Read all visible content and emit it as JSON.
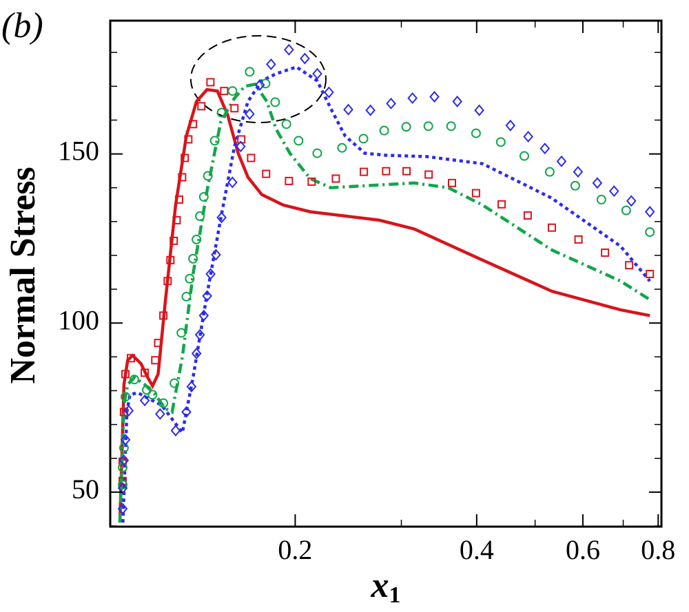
{
  "chart_data": {
    "type": "line",
    "title": "(b)",
    "ylabel": "Normal Stress",
    "xlabel": {
      "text": "x",
      "sub": "1"
    },
    "xscale": "log",
    "xlim": [
      0.0987,
      0.81
    ],
    "ylim": [
      39.8,
      189.4
    ],
    "xticks": [
      0.2,
      0.4,
      0.6,
      0.8
    ],
    "xminorticks": [
      0.3,
      0.5,
      0.7
    ],
    "yticks": [
      50,
      100,
      150
    ],
    "yminorticks": [
      40,
      60,
      70,
      80,
      90,
      110,
      120,
      130,
      140,
      160,
      170,
      180
    ],
    "series": [
      {
        "color": "#d9141b",
        "style": "solid",
        "x": [
          0.1024,
          0.104,
          0.1055,
          0.1075,
          0.111,
          0.1139,
          0.116,
          0.1185,
          0.1218,
          0.1267,
          0.132,
          0.1372,
          0.1428,
          0.1486,
          0.1546,
          0.1609,
          0.167,
          0.176,
          0.191,
          0.2118,
          0.276,
          0.315,
          0.409,
          0.533,
          0.693,
          0.775
        ],
        "values": [
          41.0,
          81.8,
          89.0,
          90.4,
          88.0,
          83.9,
          81.4,
          84.9,
          106.3,
          134.9,
          155.3,
          165.5,
          169.0,
          168.6,
          161.4,
          150.2,
          143.1,
          138.0,
          134.9,
          132.9,
          130.4,
          127.8,
          118.6,
          109.4,
          103.9,
          102.2
        ]
      },
      {
        "color": "#12a64a",
        "style": "dashdot",
        "x": [
          0.1024,
          0.104,
          0.1055,
          0.1082,
          0.1126,
          0.1172,
          0.1218,
          0.125,
          0.13,
          0.1354,
          0.1428,
          0.1505,
          0.1586,
          0.165,
          0.1716,
          0.1795,
          0.186,
          0.196,
          0.2118,
          0.229,
          0.261,
          0.315,
          0.359,
          0.409,
          0.533,
          0.693,
          0.775
        ],
        "values": [
          41.0,
          75.7,
          81.8,
          83.9,
          81.8,
          78.8,
          74.7,
          73.7,
          90.0,
          114.5,
          139.0,
          159.4,
          166.5,
          170.0,
          170.6,
          165.5,
          157.3,
          150.2,
          142.7,
          140.0,
          140.6,
          141.4,
          140.0,
          134.9,
          121.6,
          112.4,
          106.9
        ]
      },
      {
        "color": "#2b2bef",
        "style": "dotted",
        "x": [
          0.1036,
          0.1052,
          0.1064,
          0.1096,
          0.1139,
          0.1201,
          0.125,
          0.13,
          0.1354,
          0.1428,
          0.1505,
          0.1586,
          0.167,
          0.176,
          0.186,
          0.201,
          0.2176,
          0.229,
          0.242,
          0.261,
          0.283,
          0.331,
          0.409,
          0.533,
          0.693,
          0.775
        ],
        "values": [
          41.0,
          73.7,
          78.8,
          79.4,
          77.8,
          75.7,
          71.6,
          67.6,
          83.9,
          108.4,
          130.8,
          152.2,
          165.5,
          171.6,
          173.7,
          175.7,
          171.6,
          163.5,
          155.3,
          150.2,
          149.6,
          149.2,
          147.1,
          136.9,
          122.7,
          112.4
        ]
      },
      {
        "color": "#d9141b",
        "marker": "square",
        "x": [
          0.1035,
          0.1035,
          0.104,
          0.1046,
          0.1068,
          0.1126,
          0.1172,
          0.1185,
          0.1209,
          0.1229,
          0.1242,
          0.1258,
          0.1272,
          0.1284,
          0.1299,
          0.1312,
          0.133,
          0.1354,
          0.1398,
          0.1447,
          0.1525,
          0.1586,
          0.1628,
          0.169,
          0.179,
          0.1953,
          0.213,
          0.2336,
          0.26,
          0.283,
          0.306,
          0.333,
          0.364,
          0.399,
          0.44,
          0.486,
          0.533,
          0.59,
          0.653,
          0.716,
          0.775
        ],
        "values": [
          53.3,
          59.0,
          73.7,
          84.9,
          89.6,
          85.3,
          89.0,
          94.1,
          102.2,
          112.4,
          118.6,
          124.3,
          130.4,
          136.5,
          143.1,
          148.8,
          154.3,
          158.8,
          164.1,
          171.2,
          168.6,
          163.5,
          154.3,
          148.8,
          144.1,
          142.0,
          141.8,
          142.7,
          144.7,
          144.9,
          144.9,
          143.9,
          141.4,
          138.4,
          135.1,
          131.8,
          128.2,
          124.7,
          120.8,
          117.1,
          114.5
        ]
      },
      {
        "color": "#12a64a",
        "marker": "circle",
        "x": [
          0.1035,
          0.1035,
          0.104,
          0.1046,
          0.1082,
          0.1135,
          0.116,
          0.1209,
          0.1261,
          0.1295,
          0.132,
          0.1337,
          0.1354,
          0.1372,
          0.139,
          0.1411,
          0.1433,
          0.1471,
          0.151,
          0.1574,
          0.1681,
          0.1786,
          0.1853,
          0.1934,
          0.2026,
          0.2176,
          0.2392,
          0.2596,
          0.281,
          0.3056,
          0.3326,
          0.3628,
          0.399,
          0.4386,
          0.4798,
          0.5288,
          0.5828,
          0.644,
          0.708,
          0.775
        ],
        "values": [
          52.2,
          57.3,
          63.1,
          78.2,
          83.3,
          80.2,
          78.8,
          76.3,
          82.2,
          97.1,
          107.8,
          113.1,
          119.0,
          124.7,
          131.6,
          137.3,
          143.5,
          153.9,
          162.2,
          168.6,
          174.3,
          170.8,
          165.3,
          158.8,
          153.9,
          150.2,
          151.8,
          154.5,
          156.9,
          158.0,
          158.2,
          158.2,
          156.1,
          153.5,
          149.4,
          144.7,
          140.6,
          136.5,
          133.3,
          126.9
        ]
      },
      {
        "color": "#2b2bef",
        "marker": "diamond",
        "x": [
          0.1035,
          0.1035,
          0.104,
          0.1046,
          0.1059,
          0.1126,
          0.1194,
          0.1267,
          0.132,
          0.1346,
          0.1372,
          0.139,
          0.1411,
          0.1429,
          0.1448,
          0.1478,
          0.151,
          0.1574,
          0.1624,
          0.1681,
          0.1748,
          0.1824,
          0.1953,
          0.2075,
          0.2176,
          0.2275,
          0.245,
          0.2666,
          0.2884,
          0.313,
          0.3404,
          0.3714,
          0.404,
          0.455,
          0.487,
          0.519,
          0.553,
          0.589,
          0.634,
          0.676,
          0.722,
          0.775
        ],
        "values": [
          45.1,
          51.2,
          59.4,
          65.5,
          74.1,
          77.1,
          73.1,
          68.2,
          73.7,
          81.2,
          91.0,
          96.5,
          102.2,
          108.0,
          114.5,
          120.2,
          131.2,
          141.6,
          152.2,
          161.8,
          170.4,
          176.5,
          180.8,
          178.2,
          173.7,
          168.2,
          163.1,
          162.9,
          164.9,
          166.5,
          166.9,
          165.5,
          162.9,
          158.4,
          155.1,
          151.6,
          147.8,
          144.7,
          141.4,
          139.0,
          136.1,
          132.9
        ]
      }
    ]
  }
}
